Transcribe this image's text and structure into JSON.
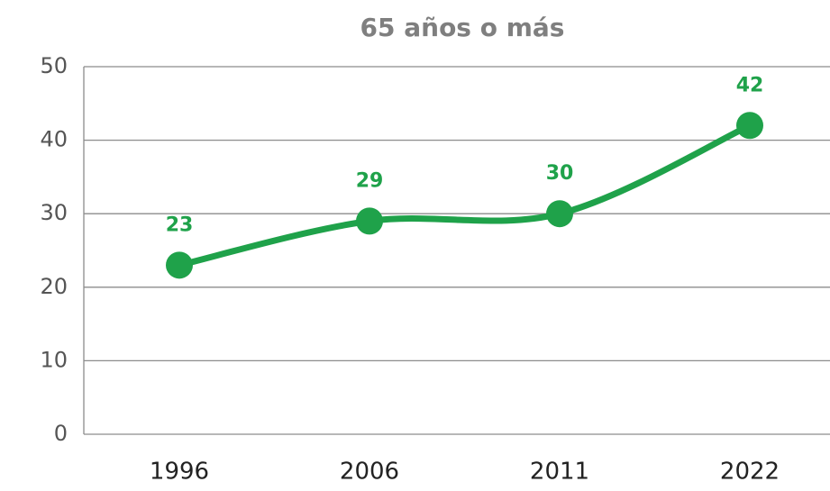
{
  "chart_data": {
    "type": "line",
    "title": "65 años o más",
    "categories": [
      "1996",
      "2006",
      "2011",
      "2022"
    ],
    "values": [
      23,
      29,
      30,
      42
    ],
    "color": "#1fa24a",
    "ylim": [
      0,
      50
    ],
    "yticks": [
      0,
      10,
      20,
      30,
      40,
      50
    ],
    "grid": true,
    "smooth": true
  }
}
